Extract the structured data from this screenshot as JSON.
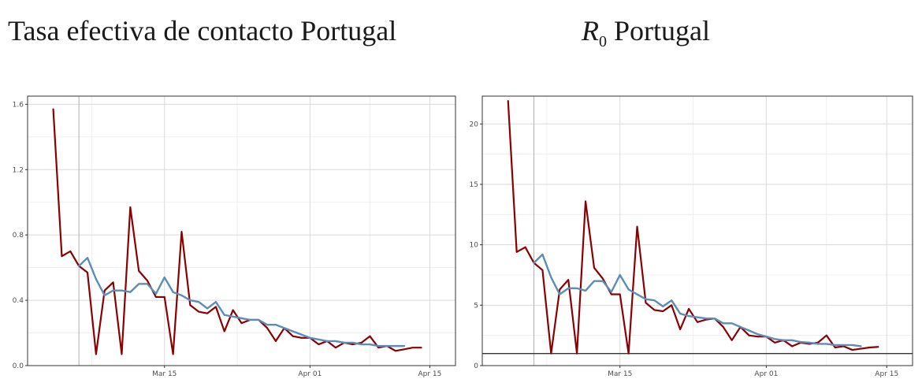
{
  "panels": [
    {
      "title": "Tasa efectiva de contacto Portugal"
    },
    {
      "title_main": "R",
      "title_sub": "0",
      "title_rest": " Portugal"
    }
  ],
  "colors": {
    "raw": "#8b0000",
    "smooth": "#5b8db8",
    "reference": "#333333"
  },
  "chart_data": [
    {
      "type": "line",
      "title": "Tasa efectiva de contacto Portugal",
      "xlabel": "",
      "ylabel": "",
      "x_ticks": [
        "Mar 15",
        "Apr 01",
        "Apr 15"
      ],
      "x_start": "2020-03-02",
      "x_range": [
        "2020-02-28",
        "2020-04-18"
      ],
      "y_ticks": [
        0.0,
        0.4,
        0.8,
        1.2,
        1.6
      ],
      "ylim": [
        0,
        1.65
      ],
      "grid": true,
      "series": [
        {
          "values": [
            1.57,
            0.67,
            0.7,
            0.61,
            0.57,
            0.07,
            0.46,
            0.51,
            0.07,
            0.97,
            0.58,
            0.52,
            0.42,
            0.42,
            0.07,
            0.82,
            0.37,
            0.33,
            0.32,
            0.36,
            0.21,
            0.34,
            0.26,
            0.28,
            0.28,
            0.23,
            0.15,
            0.23,
            0.18,
            0.17,
            0.17,
            0.13,
            0.15,
            0.11,
            0.14,
            0.13,
            0.14,
            0.18,
            0.11,
            0.12,
            0.09,
            0.1,
            0.11,
            0.11
          ],
          "color": "#8b0000"
        },
        {
          "x_offset": 3,
          "values": [
            0.61,
            0.66,
            0.53,
            0.43,
            0.46,
            0.46,
            0.45,
            0.5,
            0.5,
            0.44,
            0.54,
            0.45,
            0.43,
            0.4,
            0.39,
            0.35,
            0.39,
            0.31,
            0.3,
            0.29,
            0.28,
            0.28,
            0.25,
            0.25,
            0.23,
            0.21,
            0.19,
            0.17,
            0.16,
            0.15,
            0.15,
            0.14,
            0.14,
            0.13,
            0.13,
            0.12,
            0.12,
            0.12,
            0.12
          ],
          "color": "#5b8db8"
        }
      ]
    },
    {
      "type": "line",
      "title": "R0 Portugal",
      "xlabel": "",
      "ylabel": "",
      "x_ticks": [
        "Mar 15",
        "Apr 01",
        "Apr 15"
      ],
      "x_start": "2020-03-02",
      "x_range": [
        "2020-02-28",
        "2020-04-18"
      ],
      "y_ticks": [
        0,
        5,
        10,
        15,
        20
      ],
      "ylim": [
        0,
        22.3
      ],
      "grid": true,
      "reference_line": 1,
      "series": [
        {
          "values": [
            21.9,
            9.4,
            9.8,
            8.5,
            7.9,
            1.0,
            6.3,
            7.1,
            1.0,
            13.6,
            8.1,
            7.2,
            5.9,
            5.9,
            1.0,
            11.5,
            5.2,
            4.6,
            4.5,
            5.0,
            3.0,
            4.7,
            3.6,
            3.8,
            3.9,
            3.2,
            2.1,
            3.2,
            2.5,
            2.4,
            2.4,
            1.9,
            2.1,
            1.6,
            1.9,
            1.8,
            1.9,
            2.5,
            1.5,
            1.6,
            1.3,
            1.4,
            1.5,
            1.55
          ],
          "color": "#8b0000"
        },
        {
          "x_offset": 3,
          "values": [
            8.5,
            9.2,
            7.3,
            5.9,
            6.4,
            6.4,
            6.2,
            7.0,
            7.0,
            6.1,
            7.5,
            6.3,
            5.9,
            5.5,
            5.4,
            4.9,
            5.4,
            4.3,
            4.1,
            4.0,
            3.9,
            3.9,
            3.5,
            3.5,
            3.2,
            2.9,
            2.6,
            2.4,
            2.2,
            2.1,
            2.1,
            1.95,
            1.9,
            1.8,
            1.8,
            1.7,
            1.7,
            1.7,
            1.6
          ],
          "color": "#5b8db8"
        }
      ]
    }
  ]
}
